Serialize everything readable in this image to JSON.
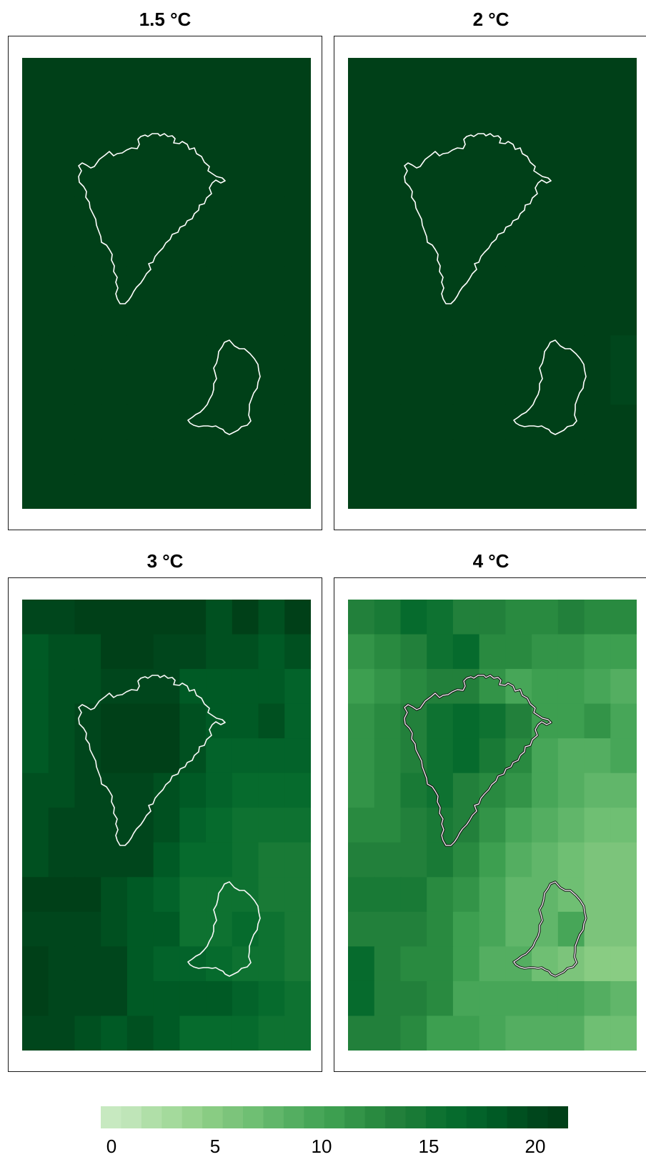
{
  "panels": [
    {
      "title": "1.5 °C",
      "grid": [
        [
          22,
          22,
          22,
          22,
          22,
          22,
          22,
          22,
          22,
          22,
          22
        ],
        [
          22,
          22,
          22,
          22,
          22,
          22,
          22,
          22,
          22,
          22,
          22
        ],
        [
          22,
          22,
          22,
          22,
          22,
          22,
          22,
          22,
          22,
          22,
          22
        ],
        [
          22,
          22,
          22,
          22,
          22,
          22,
          22,
          22,
          22,
          22,
          22
        ],
        [
          22,
          22,
          22,
          22,
          22,
          22,
          22,
          22,
          22,
          22,
          22
        ],
        [
          22,
          22,
          22,
          22,
          22,
          22,
          22,
          22,
          22,
          22,
          22
        ],
        [
          22,
          22,
          22,
          22,
          22,
          22,
          22,
          22,
          22,
          22,
          22
        ],
        [
          22,
          22,
          22,
          22,
          22,
          22,
          22,
          22,
          22,
          22,
          22
        ],
        [
          22,
          22,
          22,
          22,
          22,
          22,
          22,
          22,
          22,
          22,
          22
        ],
        [
          22,
          22,
          22,
          22,
          22,
          22,
          22,
          22,
          22,
          22,
          22
        ],
        [
          22,
          22,
          22,
          22,
          22,
          22,
          22,
          22,
          22,
          22,
          22
        ],
        [
          22,
          22,
          22,
          22,
          22,
          22,
          22,
          22,
          22,
          22,
          22
        ],
        [
          22,
          22,
          22,
          22,
          22,
          22,
          22,
          22,
          22,
          22,
          22
        ]
      ]
    },
    {
      "title": "2 °C",
      "grid": [
        [
          22,
          22,
          22,
          22,
          22,
          22,
          22,
          22,
          22,
          22,
          22
        ],
        [
          22,
          22,
          22,
          22,
          22,
          22,
          22,
          22,
          22,
          22,
          22
        ],
        [
          22,
          22,
          22,
          22,
          22,
          22,
          22,
          22,
          22,
          22,
          22
        ],
        [
          22,
          22,
          22,
          22,
          22,
          22,
          22,
          22,
          22,
          22,
          22
        ],
        [
          22,
          22,
          22,
          22,
          22,
          22,
          22,
          22,
          22,
          22,
          22
        ],
        [
          22,
          22,
          22,
          22,
          22,
          22,
          22,
          22,
          22,
          22,
          22
        ],
        [
          22,
          22,
          22,
          22,
          22,
          22,
          22,
          22,
          22,
          22,
          22
        ],
        [
          22,
          22,
          22,
          22,
          22,
          22,
          22,
          22,
          21.5,
          21.5,
          21.5
        ],
        [
          22,
          22,
          22,
          22,
          22,
          22,
          22,
          22,
          21.5,
          21.5,
          21
        ],
        [
          22,
          22,
          22,
          22,
          22,
          22,
          22,
          22,
          21.5,
          21.5,
          21
        ],
        [
          22,
          22,
          22,
          22,
          22,
          22,
          22,
          22,
          22,
          22,
          22
        ],
        [
          22,
          22,
          22,
          22,
          22,
          22,
          22,
          22,
          22,
          22,
          22
        ],
        [
          22,
          22,
          22,
          22,
          22,
          22,
          22,
          22,
          22,
          22,
          22
        ]
      ]
    },
    {
      "title": "3 °C",
      "grid": [
        [
          21,
          21,
          22,
          22,
          21.5,
          21.5,
          21.5,
          20,
          21.5,
          20,
          21.5
        ],
        [
          19,
          20,
          20,
          22,
          22,
          21,
          21,
          20,
          20,
          19,
          20
        ],
        [
          19,
          20,
          20,
          21,
          21,
          21,
          19,
          19,
          19,
          19,
          18
        ],
        [
          19,
          20,
          21,
          22,
          22,
          22,
          20,
          19,
          19,
          20,
          18
        ],
        [
          19,
          20,
          21,
          22,
          22,
          22,
          20,
          18,
          18,
          18,
          18
        ],
        [
          20,
          20,
          21,
          21,
          21,
          20,
          19,
          18,
          17,
          17,
          17
        ],
        [
          20,
          21,
          21,
          21,
          21,
          20,
          18,
          17,
          16,
          16,
          16
        ],
        [
          20,
          21,
          21,
          21,
          21,
          19,
          17,
          17,
          16,
          15,
          15
        ],
        [
          22,
          22,
          22,
          20,
          19,
          18,
          16,
          16,
          16,
          15,
          15
        ],
        [
          21,
          21,
          21,
          20,
          19,
          19,
          16,
          16,
          17,
          16,
          15
        ],
        [
          22,
          21,
          21,
          21,
          19,
          18,
          18,
          17,
          16,
          16,
          15
        ],
        [
          22,
          21,
          21,
          21,
          19,
          19,
          19,
          19,
          18,
          17,
          16
        ],
        [
          21,
          21,
          20,
          19,
          20,
          19,
          17,
          17,
          17,
          16,
          16
        ]
      ]
    },
    {
      "title": "4 °C",
      "grid": [
        [
          14,
          15,
          17,
          16,
          14,
          14,
          13,
          13,
          14,
          13,
          13
        ],
        [
          12,
          13,
          14,
          16,
          17,
          13,
          13,
          12,
          12,
          11,
          11
        ],
        [
          11,
          12,
          13,
          14,
          14,
          12,
          10,
          11,
          11,
          10,
          9
        ],
        [
          12,
          13,
          14,
          16,
          17,
          16,
          14,
          11,
          11,
          12,
          10
        ],
        [
          12,
          13,
          14,
          16,
          17,
          15,
          13,
          10,
          9,
          9,
          10
        ],
        [
          12,
          13,
          15,
          16,
          14,
          13,
          12,
          10,
          9,
          8,
          8
        ],
        [
          13,
          13,
          14,
          15,
          14,
          12,
          10,
          9,
          8,
          7,
          7
        ],
        [
          14,
          14,
          14,
          15,
          13,
          11,
          9,
          8,
          7,
          6,
          6
        ],
        [
          15,
          15,
          15,
          13,
          12,
          10,
          8,
          8,
          7,
          6,
          6
        ],
        [
          14,
          14,
          14,
          13,
          11,
          10,
          8,
          8,
          10,
          6,
          6
        ],
        [
          17,
          14,
          13,
          13,
          11,
          9,
          9,
          7,
          6,
          5,
          5
        ],
        [
          17,
          14,
          14,
          13,
          10,
          10,
          10,
          10,
          10,
          9,
          8
        ],
        [
          14,
          14,
          13,
          11,
          11,
          10,
          9,
          9,
          9,
          7,
          7
        ]
      ]
    }
  ],
  "legend": {
    "min": 0,
    "max": 22,
    "step": 1,
    "ticks": [
      "0",
      "5",
      "10",
      "15",
      "20"
    ],
    "tick_values": [
      0,
      5,
      10,
      15,
      20
    ],
    "colors": [
      "#c7e9c0",
      "#bfe5b8",
      "#b0dfa8",
      "#a4da9c",
      "#97d38f",
      "#89cc83",
      "#7cc47b",
      "#6fbf73",
      "#61b66a",
      "#54ae61",
      "#47a658",
      "#3d9f50",
      "#339448",
      "#298a40",
      "#22803b",
      "#197a36",
      "#0e7231",
      "#066b2d",
      "#03632a",
      "#005a25",
      "#005020",
      "#00461c",
      "#004018"
    ]
  }
}
